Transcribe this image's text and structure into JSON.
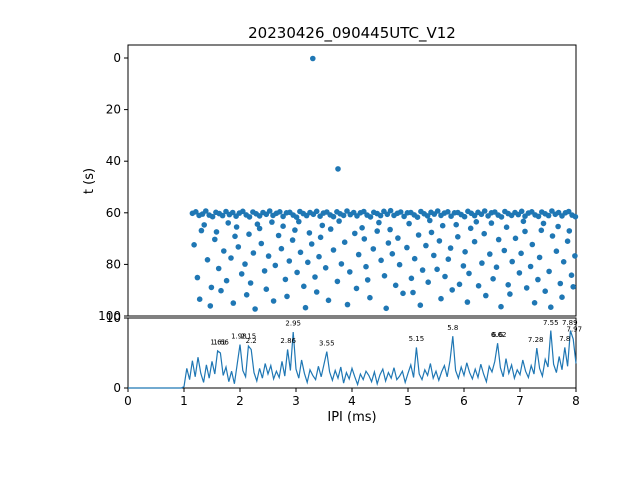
{
  "title": "20230426_090445UTC_V12",
  "colors": {
    "accent": "#1f77b4",
    "axis": "#000000",
    "background": "#ffffff"
  },
  "chart_data": [
    {
      "type": "scatter",
      "title": "20230426_090445UTC_V12",
      "xlabel": "",
      "ylabel": "t (s)",
      "xlim": [
        0,
        8
      ],
      "ylim": [
        100,
        0
      ],
      "y_axis_inverted": true,
      "grid": false,
      "y_ticks": [
        0,
        20,
        40,
        60,
        80,
        100
      ],
      "x_ticks": [
        0,
        1,
        2,
        3,
        4,
        5,
        6,
        7,
        8
      ],
      "x_tick_labels_visible": false,
      "points": [
        [
          3.3,
          0.2
        ],
        [
          3.75,
          43.0
        ],
        [
          1.15,
          60.2
        ],
        [
          1.21,
          59.6
        ],
        [
          1.27,
          61.0
        ],
        [
          1.33,
          60.5
        ],
        [
          1.39,
          59.3
        ],
        [
          1.45,
          60.9
        ],
        [
          1.51,
          61.5
        ],
        [
          1.57,
          59.8
        ],
        [
          1.63,
          60.3
        ],
        [
          1.69,
          61.1
        ],
        [
          1.75,
          59.5
        ],
        [
          1.81,
          60.7
        ],
        [
          1.87,
          59.9
        ],
        [
          1.93,
          61.3
        ],
        [
          1.99,
          60.1
        ],
        [
          2.05,
          59.4
        ],
        [
          2.11,
          60.8
        ],
        [
          2.17,
          61.6
        ],
        [
          2.23,
          59.7
        ],
        [
          2.29,
          60.4
        ],
        [
          2.35,
          61.2
        ],
        [
          2.41,
          59.9
        ],
        [
          2.47,
          60.6
        ],
        [
          2.53,
          59.3
        ],
        [
          2.59,
          61.0
        ],
        [
          2.65,
          60.2
        ],
        [
          2.71,
          59.6
        ],
        [
          2.77,
          61.4
        ],
        [
          2.83,
          60.0
        ],
        [
          2.89,
          59.8
        ],
        [
          2.95,
          60.9
        ],
        [
          3.01,
          61.7
        ],
        [
          3.07,
          59.5
        ],
        [
          3.13,
          60.3
        ],
        [
          3.19,
          61.1
        ],
        [
          3.25,
          59.9
        ],
        [
          3.31,
          60.6
        ],
        [
          3.37,
          59.4
        ],
        [
          3.43,
          61.3
        ],
        [
          3.49,
          60.1
        ],
        [
          3.55,
          59.7
        ],
        [
          3.61,
          60.8
        ],
        [
          3.67,
          61.5
        ],
        [
          3.73,
          59.6
        ],
        [
          3.79,
          60.4
        ],
        [
          3.85,
          61.0
        ],
        [
          3.91,
          59.3
        ],
        [
          3.97,
          60.7
        ],
        [
          4.03,
          59.9
        ],
        [
          4.09,
          61.2
        ],
        [
          4.15,
          60.0
        ],
        [
          4.21,
          59.5
        ],
        [
          4.27,
          60.9
        ],
        [
          4.33,
          61.6
        ],
        [
          4.39,
          59.8
        ],
        [
          4.45,
          60.3
        ],
        [
          4.51,
          61.1
        ],
        [
          4.57,
          59.4
        ],
        [
          4.63,
          60.6
        ],
        [
          4.69,
          59.2
        ],
        [
          4.75,
          61.0
        ],
        [
          4.81,
          60.2
        ],
        [
          4.87,
          59.7
        ],
        [
          4.93,
          61.4
        ],
        [
          4.99,
          60.0
        ],
        [
          5.05,
          59.9
        ],
        [
          5.11,
          60.8
        ],
        [
          5.17,
          61.7
        ],
        [
          5.23,
          59.5
        ],
        [
          5.29,
          60.4
        ],
        [
          5.35,
          61.2
        ],
        [
          5.41,
          59.8
        ],
        [
          5.47,
          60.5
        ],
        [
          5.53,
          59.3
        ],
        [
          5.59,
          61.0
        ],
        [
          5.65,
          60.1
        ],
        [
          5.71,
          59.6
        ],
        [
          5.77,
          61.3
        ],
        [
          5.83,
          60.0
        ],
        [
          5.89,
          59.9
        ],
        [
          5.95,
          60.7
        ],
        [
          6.01,
          61.5
        ],
        [
          6.07,
          59.4
        ],
        [
          6.13,
          60.2
        ],
        [
          6.19,
          61.1
        ],
        [
          6.25,
          59.8
        ],
        [
          6.31,
          60.6
        ],
        [
          6.37,
          59.3
        ],
        [
          6.43,
          61.2
        ],
        [
          6.49,
          60.0
        ],
        [
          6.55,
          59.7
        ],
        [
          6.61,
          60.9
        ],
        [
          6.67,
          61.6
        ],
        [
          6.73,
          59.5
        ],
        [
          6.79,
          60.3
        ],
        [
          6.85,
          61.0
        ],
        [
          6.91,
          59.9
        ],
        [
          6.97,
          60.7
        ],
        [
          7.03,
          59.4
        ],
        [
          7.09,
          61.3
        ],
        [
          7.15,
          60.1
        ],
        [
          7.21,
          59.6
        ],
        [
          7.27,
          60.8
        ],
        [
          7.33,
          61.4
        ],
        [
          7.39,
          59.7
        ],
        [
          7.45,
          60.4
        ],
        [
          7.51,
          61.1
        ],
        [
          7.57,
          59.3
        ],
        [
          7.63,
          60.6
        ],
        [
          7.69,
          59.9
        ],
        [
          7.75,
          61.2
        ],
        [
          7.81,
          60.0
        ],
        [
          7.87,
          59.5
        ],
        [
          7.93,
          60.9
        ],
        [
          7.99,
          61.5
        ],
        [
          1.18,
          72.4
        ],
        [
          1.24,
          85.1
        ],
        [
          1.31,
          66.9
        ],
        [
          1.28,
          93.5
        ],
        [
          1.42,
          78.2
        ],
        [
          1.36,
          64.7
        ],
        [
          1.49,
          88.9
        ],
        [
          1.55,
          70.3
        ],
        [
          1.47,
          96.1
        ],
        [
          1.62,
          81.6
        ],
        [
          1.58,
          67.4
        ],
        [
          1.71,
          74.8
        ],
        [
          1.66,
          90.2
        ],
        [
          1.79,
          63.9
        ],
        [
          1.84,
          77.5
        ],
        [
          1.76,
          86.3
        ],
        [
          1.91,
          69.1
        ],
        [
          1.88,
          95.0
        ],
        [
          1.97,
          73.2
        ],
        [
          2.03,
          83.7
        ],
        [
          1.94,
          65.5
        ],
        [
          2.09,
          79.9
        ],
        [
          2.16,
          68.3
        ],
        [
          2.12,
          91.8
        ],
        [
          2.24,
          75.6
        ],
        [
          2.19,
          87.2
        ],
        [
          2.31,
          64.4
        ],
        [
          2.27,
          97.3
        ],
        [
          2.38,
          71.9
        ],
        [
          2.44,
          82.5
        ],
        [
          2.35,
          66.1
        ],
        [
          2.51,
          76.8
        ],
        [
          2.47,
          89.6
        ],
        [
          2.57,
          63.6
        ],
        [
          2.63,
          80.4
        ],
        [
          2.69,
          68.8
        ],
        [
          2.6,
          94.2
        ],
        [
          2.74,
          73.9
        ],
        [
          2.81,
          85.8
        ],
        [
          2.77,
          65.2
        ],
        [
          2.88,
          78.7
        ],
        [
          2.84,
          92.4
        ],
        [
          2.94,
          70.6
        ],
        [
          3.02,
          83.1
        ],
        [
          2.98,
          66.7
        ],
        [
          3.08,
          75.3
        ],
        [
          3.14,
          88.5
        ],
        [
          3.05,
          63.4
        ],
        [
          3.21,
          79.2
        ],
        [
          3.17,
          96.8
        ],
        [
          3.28,
          72.1
        ],
        [
          3.34,
          84.9
        ],
        [
          3.24,
          67.8
        ],
        [
          3.41,
          77.0
        ],
        [
          3.37,
          90.7
        ],
        [
          3.47,
          64.9
        ],
        [
          3.53,
          81.3
        ],
        [
          3.44,
          69.5
        ],
        [
          3.58,
          93.9
        ],
        [
          3.67,
          74.4
        ],
        [
          3.74,
          86.6
        ],
        [
          3.62,
          66.3
        ],
        [
          3.81,
          79.8
        ],
        [
          3.77,
          63.2
        ],
        [
          3.87,
          71.4
        ],
        [
          3.96,
          82.9
        ],
        [
          3.92,
          95.6
        ],
        [
          4.05,
          68.0
        ],
        [
          4.12,
          76.2
        ],
        [
          4.08,
          89.3
        ],
        [
          4.18,
          65.8
        ],
        [
          4.25,
          80.9
        ],
        [
          4.22,
          70.1
        ],
        [
          4.32,
          92.9
        ],
        [
          4.38,
          74.0
        ],
        [
          4.28,
          86.0
        ],
        [
          4.45,
          67.1
        ],
        [
          4.52,
          78.4
        ],
        [
          4.48,
          63.8
        ],
        [
          4.58,
          84.4
        ],
        [
          4.65,
          71.7
        ],
        [
          4.61,
          97.0
        ],
        [
          4.72,
          75.9
        ],
        [
          4.78,
          88.1
        ],
        [
          4.68,
          66.5
        ],
        [
          4.85,
          80.1
        ],
        [
          4.82,
          69.8
        ],
        [
          4.91,
          91.2
        ],
        [
          4.98,
          73.5
        ],
        [
          5.06,
          85.4
        ],
        [
          5.02,
          64.2
        ],
        [
          5.12,
          77.8
        ],
        [
          5.09,
          90.9
        ],
        [
          5.19,
          68.6
        ],
        [
          5.26,
          82.2
        ],
        [
          5.22,
          95.8
        ],
        [
          5.32,
          72.7
        ],
        [
          5.39,
          63.0
        ],
        [
          5.36,
          86.9
        ],
        [
          5.46,
          76.5
        ],
        [
          5.42,
          67.6
        ],
        [
          5.52,
          81.9
        ],
        [
          5.59,
          93.3
        ],
        [
          5.56,
          70.9
        ],
        [
          5.66,
          84.7
        ],
        [
          5.62,
          65.0
        ],
        [
          5.72,
          78.0
        ],
        [
          5.79,
          89.9
        ],
        [
          5.76,
          73.7
        ],
        [
          5.86,
          64.6
        ],
        [
          5.92,
          87.7
        ],
        [
          5.89,
          69.3
        ],
        [
          5.99,
          80.6
        ],
        [
          6.06,
          94.6
        ],
        [
          6.02,
          75.1
        ],
        [
          6.12,
          66.0
        ],
        [
          6.09,
          83.5
        ],
        [
          6.19,
          71.2
        ],
        [
          6.26,
          88.3
        ],
        [
          6.22,
          63.5
        ],
        [
          6.32,
          79.5
        ],
        [
          6.39,
          92.1
        ],
        [
          6.36,
          68.1
        ],
        [
          6.46,
          76.0
        ],
        [
          6.52,
          85.6
        ],
        [
          6.49,
          64.0
        ],
        [
          6.58,
          81.1
        ],
        [
          6.66,
          96.4
        ],
        [
          6.62,
          70.4
        ],
        [
          6.72,
          74.6
        ],
        [
          6.79,
          87.9
        ],
        [
          6.76,
          65.6
        ],
        [
          6.86,
          78.9
        ],
        [
          6.82,
          91.5
        ],
        [
          6.92,
          69.9
        ],
        [
          6.99,
          83.3
        ],
        [
          7.06,
          63.3
        ],
        [
          7.02,
          75.7
        ],
        [
          7.12,
          89.1
        ],
        [
          7.09,
          67.2
        ],
        [
          7.19,
          80.8
        ],
        [
          7.26,
          94.9
        ],
        [
          7.22,
          72.3
        ],
        [
          7.32,
          85.9
        ],
        [
          7.38,
          66.8
        ],
        [
          7.35,
          77.3
        ],
        [
          7.45,
          90.4
        ],
        [
          7.42,
          64.1
        ],
        [
          7.52,
          82.7
        ],
        [
          7.58,
          69.0
        ],
        [
          7.55,
          96.6
        ],
        [
          7.65,
          74.9
        ],
        [
          7.72,
          87.4
        ],
        [
          7.68,
          65.3
        ],
        [
          7.78,
          79.0
        ],
        [
          7.75,
          92.7
        ],
        [
          7.85,
          71.0
        ],
        [
          7.92,
          84.2
        ],
        [
          7.88,
          67.0
        ],
        [
          7.98,
          76.7
        ],
        [
          7.95,
          88.7
        ]
      ]
    },
    {
      "type": "line",
      "xlabel": "IPI (ms)",
      "ylabel": "",
      "xlim": [
        0,
        8
      ],
      "ylim": [
        0,
        10
      ],
      "grid": false,
      "y_ticks": [
        0,
        10
      ],
      "x_ticks": [
        0,
        1,
        2,
        3,
        4,
        5,
        6,
        7,
        8
      ],
      "x_start": 0,
      "x_step": 0.05,
      "values": [
        0,
        0,
        0,
        0,
        0,
        0,
        0,
        0,
        0,
        0,
        0,
        0,
        0,
        0,
        0,
        0,
        0,
        0,
        0,
        0,
        0.2,
        2.8,
        1.2,
        3.9,
        1.6,
        4.4,
        2.1,
        0.8,
        3.3,
        1.4,
        3.8,
        2.0,
        5.3,
        5.0,
        1.8,
        3.0,
        0.9,
        2.4,
        0.6,
        3.4,
        6.2,
        2.5,
        1.6,
        6.0,
        5.5,
        2.2,
        1.0,
        2.8,
        1.4,
        3.5,
        2.0,
        3.2,
        1.3,
        2.4,
        1.5,
        3.8,
        1.7,
        5.5,
        2.5,
        8.0,
        2.7,
        1.4,
        4.0,
        2.1,
        0.8,
        2.6,
        1.8,
        1.2,
        3.1,
        1.6,
        3.4,
        5.2,
        2.3,
        1.1,
        2.5,
        1.4,
        3.0,
        0.7,
        2.2,
        1.3,
        2.8,
        1.6,
        0.5,
        2.0,
        1.2,
        2.4,
        1.8,
        0.9,
        2.3,
        0.6,
        1.9,
        2.7,
        1.0,
        2.2,
        1.4,
        2.9,
        1.2,
        1.7,
        2.4,
        0.8,
        2.1,
        3.3,
        1.5,
        5.8,
        2.0,
        1.2,
        2.6,
        1.8,
        3.5,
        1.4,
        2.4,
        1.1,
        2.3,
        3.2,
        1.6,
        3.9,
        7.4,
        2.5,
        1.4,
        3.0,
        1.8,
        3.6,
        2.2,
        1.3,
        2.7,
        1.5,
        3.4,
        2.0,
        0.9,
        3.1,
        2.3,
        3.8,
        6.4,
        2.9,
        1.6,
        4.2,
        2.1,
        3.3,
        1.4,
        2.6,
        1.9,
        4.0,
        2.4,
        1.5,
        3.2,
        2.0,
        5.7,
        2.8,
        1.7,
        4.1,
        3.0,
        8.2,
        3.4,
        2.2,
        4.5,
        2.6,
        5.8,
        3.1,
        8.2,
        7.0,
        3.5
      ],
      "peak_labels": [
        {
          "x": 1.61,
          "y": 6.2,
          "label": "1.61"
        },
        {
          "x": 1.66,
          "y": 6.2,
          "label": "1.66"
        },
        {
          "x": 1.98,
          "y": 7.1,
          "label": "1.98"
        },
        {
          "x": 2.15,
          "y": 7.1,
          "label": "2.15"
        },
        {
          "x": 2.2,
          "y": 6.4,
          "label": "2.2"
        },
        {
          "x": 2.86,
          "y": 6.4,
          "label": "2.86"
        },
        {
          "x": 2.95,
          "y": 8.9,
          "label": "2.95"
        },
        {
          "x": 3.55,
          "y": 6.1,
          "label": "3.55"
        },
        {
          "x": 5.15,
          "y": 6.7,
          "label": "5.15"
        },
        {
          "x": 5.8,
          "y": 8.3,
          "label": "5.8"
        },
        {
          "x": 6.6,
          "y": 7.3,
          "label": "6.6"
        },
        {
          "x": 6.62,
          "y": 7.3,
          "label": "6.62"
        },
        {
          "x": 7.28,
          "y": 6.6,
          "label": "7.28"
        },
        {
          "x": 7.55,
          "y": 9.0,
          "label": "7.55"
        },
        {
          "x": 7.8,
          "y": 6.7,
          "label": "7.8"
        },
        {
          "x": 7.89,
          "y": 9.0,
          "label": "7.89"
        },
        {
          "x": 7.97,
          "y": 8.1,
          "label": "7.97"
        }
      ]
    }
  ]
}
